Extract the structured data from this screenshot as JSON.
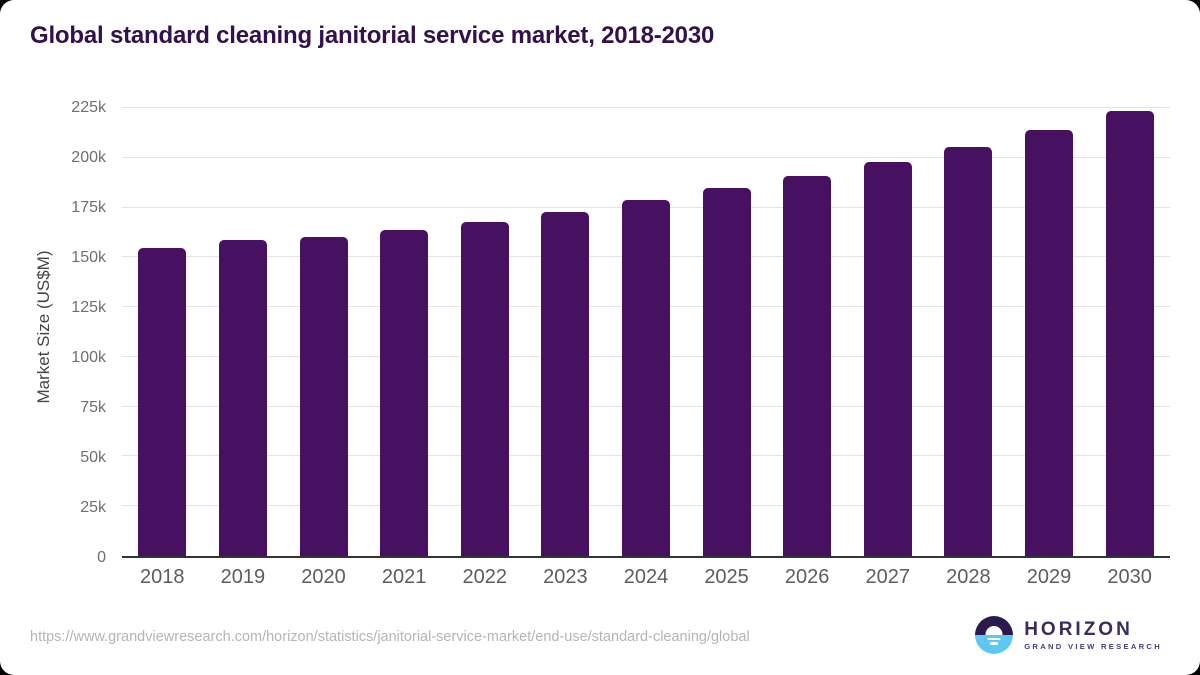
{
  "chart_data": {
    "type": "bar",
    "title": "Global standard cleaning janitorial service market, 2018-2030",
    "xlabel": "",
    "ylabel": "Market Size (US$M)",
    "categories": [
      "2018",
      "2019",
      "2020",
      "2021",
      "2022",
      "2023",
      "2024",
      "2025",
      "2026",
      "2027",
      "2028",
      "2029",
      "2030"
    ],
    "values": [
      154600,
      158500,
      160000,
      163500,
      167700,
      172900,
      178700,
      184600,
      191000,
      198000,
      205400,
      214000,
      223400
    ],
    "yticks": [
      0,
      25000,
      50000,
      75000,
      100000,
      125000,
      150000,
      175000,
      200000,
      225000
    ],
    "ytick_labels": [
      "0",
      "25k",
      "50k",
      "75k",
      "100k",
      "125k",
      "150k",
      "175k",
      "200k",
      "225k"
    ],
    "ylim": [
      0,
      231500
    ],
    "grid": "horizontal",
    "legend": "none",
    "bar_color": "#471061"
  },
  "footer": {
    "source_url": "https://www.grandviewresearch.com/horizon/statistics/janitorial-service-market/end-use/standard-cleaning/global",
    "logo_name": "HORIZON",
    "logo_subtitle": "GRAND VIEW RESEARCH"
  },
  "colors": {
    "bar": "#471061",
    "title_text": "#33114e",
    "axis_line": "#333333",
    "gridline": "#e4e4e4",
    "tick_text": "#6f6f6f",
    "logo_navy": "#2c1a4d",
    "logo_blue": "#5ec8f2"
  }
}
